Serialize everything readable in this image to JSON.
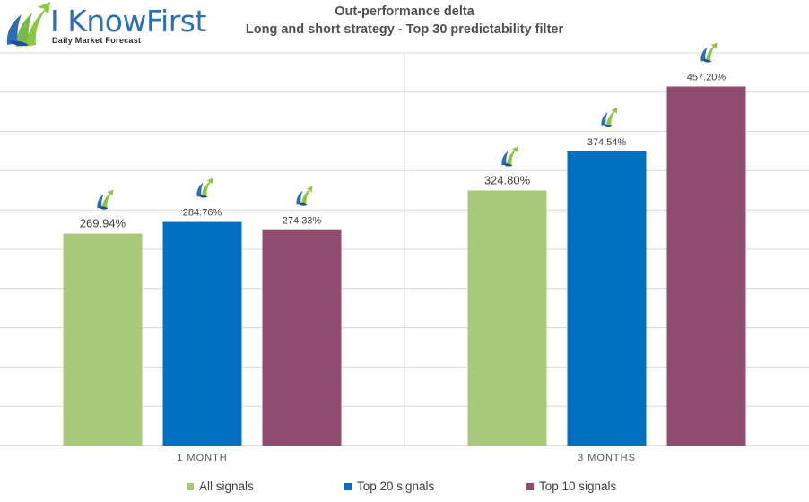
{
  "logo": {
    "name": "I KnowFirst",
    "tagline": "Daily Market Forecast"
  },
  "chart_data": {
    "type": "bar",
    "title": "Out-performance delta",
    "subtitle": "Long and short strategy - Top 30 predictability filter",
    "categories": [
      "1 MONTH",
      "3 MONTHS"
    ],
    "series": [
      {
        "name": "All signals",
        "color": "#a9c97a",
        "values": [
          269.94,
          324.8
        ],
        "labels": [
          "269.94%",
          "324.80%"
        ]
      },
      {
        "name": "Top 20 signals",
        "color": "#0070c0",
        "values": [
          284.76,
          374.54
        ],
        "labels": [
          "284.76%",
          "374.54%"
        ]
      },
      {
        "name": "Top 10 signals",
        "color": "#904c6f",
        "values": [
          274.33,
          457.2
        ],
        "labels": [
          "274.33%",
          "457.20%"
        ]
      }
    ],
    "ylim": [
      0,
      500
    ],
    "grid": true,
    "legend_position": "bottom",
    "data_label_icon": "i-know-first-logo-icon"
  }
}
